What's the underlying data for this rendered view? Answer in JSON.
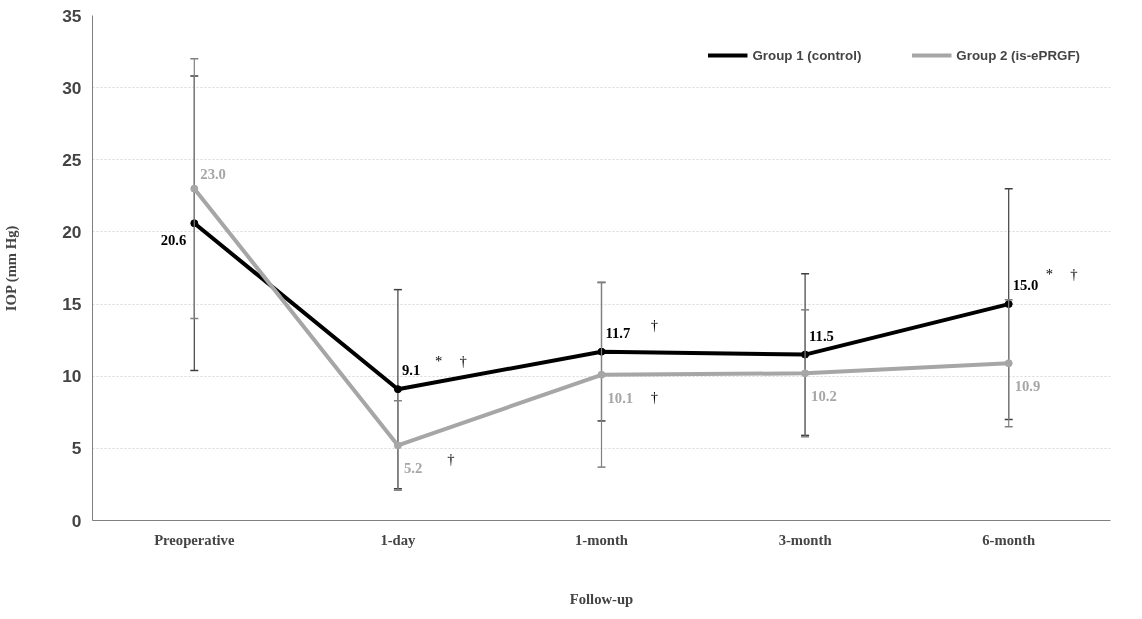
{
  "chart_data": {
    "type": "line",
    "xlabel": "Follow-up",
    "ylabel": "IOP (mm Hg)",
    "categories": [
      "Preoperative",
      "1-day",
      "1-month",
      "3-month",
      "6-month"
    ],
    "series": [
      {
        "name": "Group 1 (control)",
        "color": "#000000",
        "values": [
          20.6,
          9.1,
          11.7,
          11.5,
          15.0
        ],
        "value_labels": [
          "20.6",
          "9.1",
          "11.7",
          "11.5",
          "15.0"
        ],
        "errors": [
          10.2,
          6.9,
          4.8,
          5.6,
          8.0
        ]
      },
      {
        "name": "Group 2 (is-ePRGF)",
        "color": "#a6a6a6",
        "values": [
          23.0,
          5.2,
          10.1,
          10.2,
          10.9
        ],
        "value_labels": [
          "23.0",
          "5.2",
          "10.1",
          "10.2",
          "10.9"
        ],
        "errors": [
          9.0,
          3.1,
          6.4,
          4.4,
          4.4
        ]
      }
    ],
    "ylim": [
      0,
      35
    ],
    "yticks": [
      0,
      5,
      10,
      15,
      20,
      25,
      30,
      35
    ],
    "grid": "y",
    "legend": "top right",
    "marker": "circle",
    "line_style": "solid",
    "annotations": [
      "*",
      "†",
      "†",
      "†",
      "†",
      "*",
      "†"
    ]
  }
}
